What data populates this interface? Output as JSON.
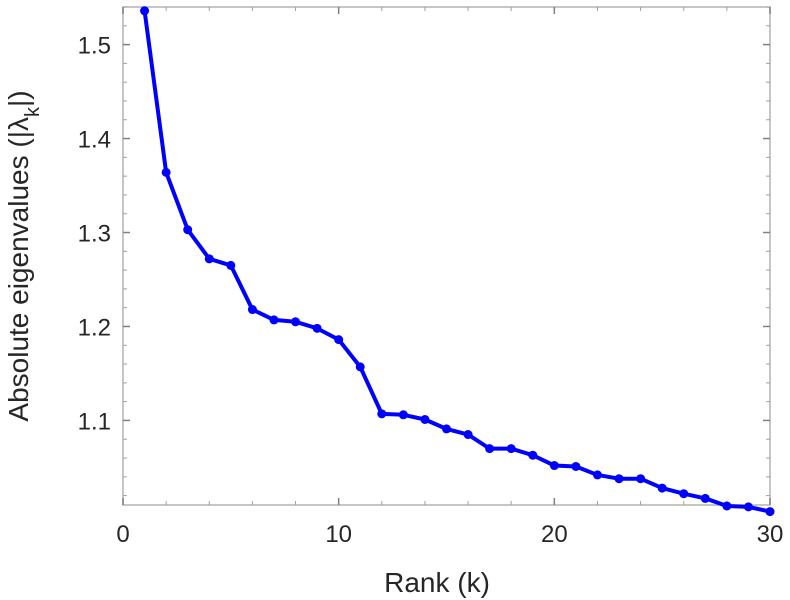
{
  "chart_data": {
    "type": "line",
    "title": "",
    "xlabel": "Rank (k)",
    "ylabel_prefix": "Absolute eigenvalues (|",
    "ylabel_symbol": "λ",
    "ylabel_subscript": "k",
    "ylabel_suffix": "|)",
    "xlim": [
      0,
      30
    ],
    "ylim": [
      1.01,
      1.54
    ],
    "xticks": [
      0,
      10,
      20,
      30
    ],
    "yticks": [
      1.1,
      1.2,
      1.3,
      1.4,
      1.5
    ],
    "xtick_labels": [
      "0",
      "10",
      "20",
      "30"
    ],
    "ytick_labels": [
      "1.1",
      "1.2",
      "1.3",
      "1.4",
      "1.5"
    ],
    "grid": false,
    "series": [
      {
        "color": "#0000ff",
        "marker": "circle",
        "x": [
          1,
          2,
          3,
          4,
          5,
          6,
          7,
          8,
          9,
          10,
          11,
          12,
          13,
          14,
          15,
          16,
          17,
          18,
          19,
          20,
          21,
          22,
          23,
          24,
          25,
          26,
          27,
          28,
          29,
          30
        ],
        "y": [
          1.536,
          1.364,
          1.303,
          1.272,
          1.265,
          1.218,
          1.207,
          1.205,
          1.198,
          1.186,
          1.157,
          1.107,
          1.106,
          1.101,
          1.091,
          1.085,
          1.07,
          1.07,
          1.063,
          1.052,
          1.051,
          1.042,
          1.038,
          1.038,
          1.028,
          1.022,
          1.017,
          1.009,
          1.008,
          1.003
        ]
      }
    ]
  }
}
